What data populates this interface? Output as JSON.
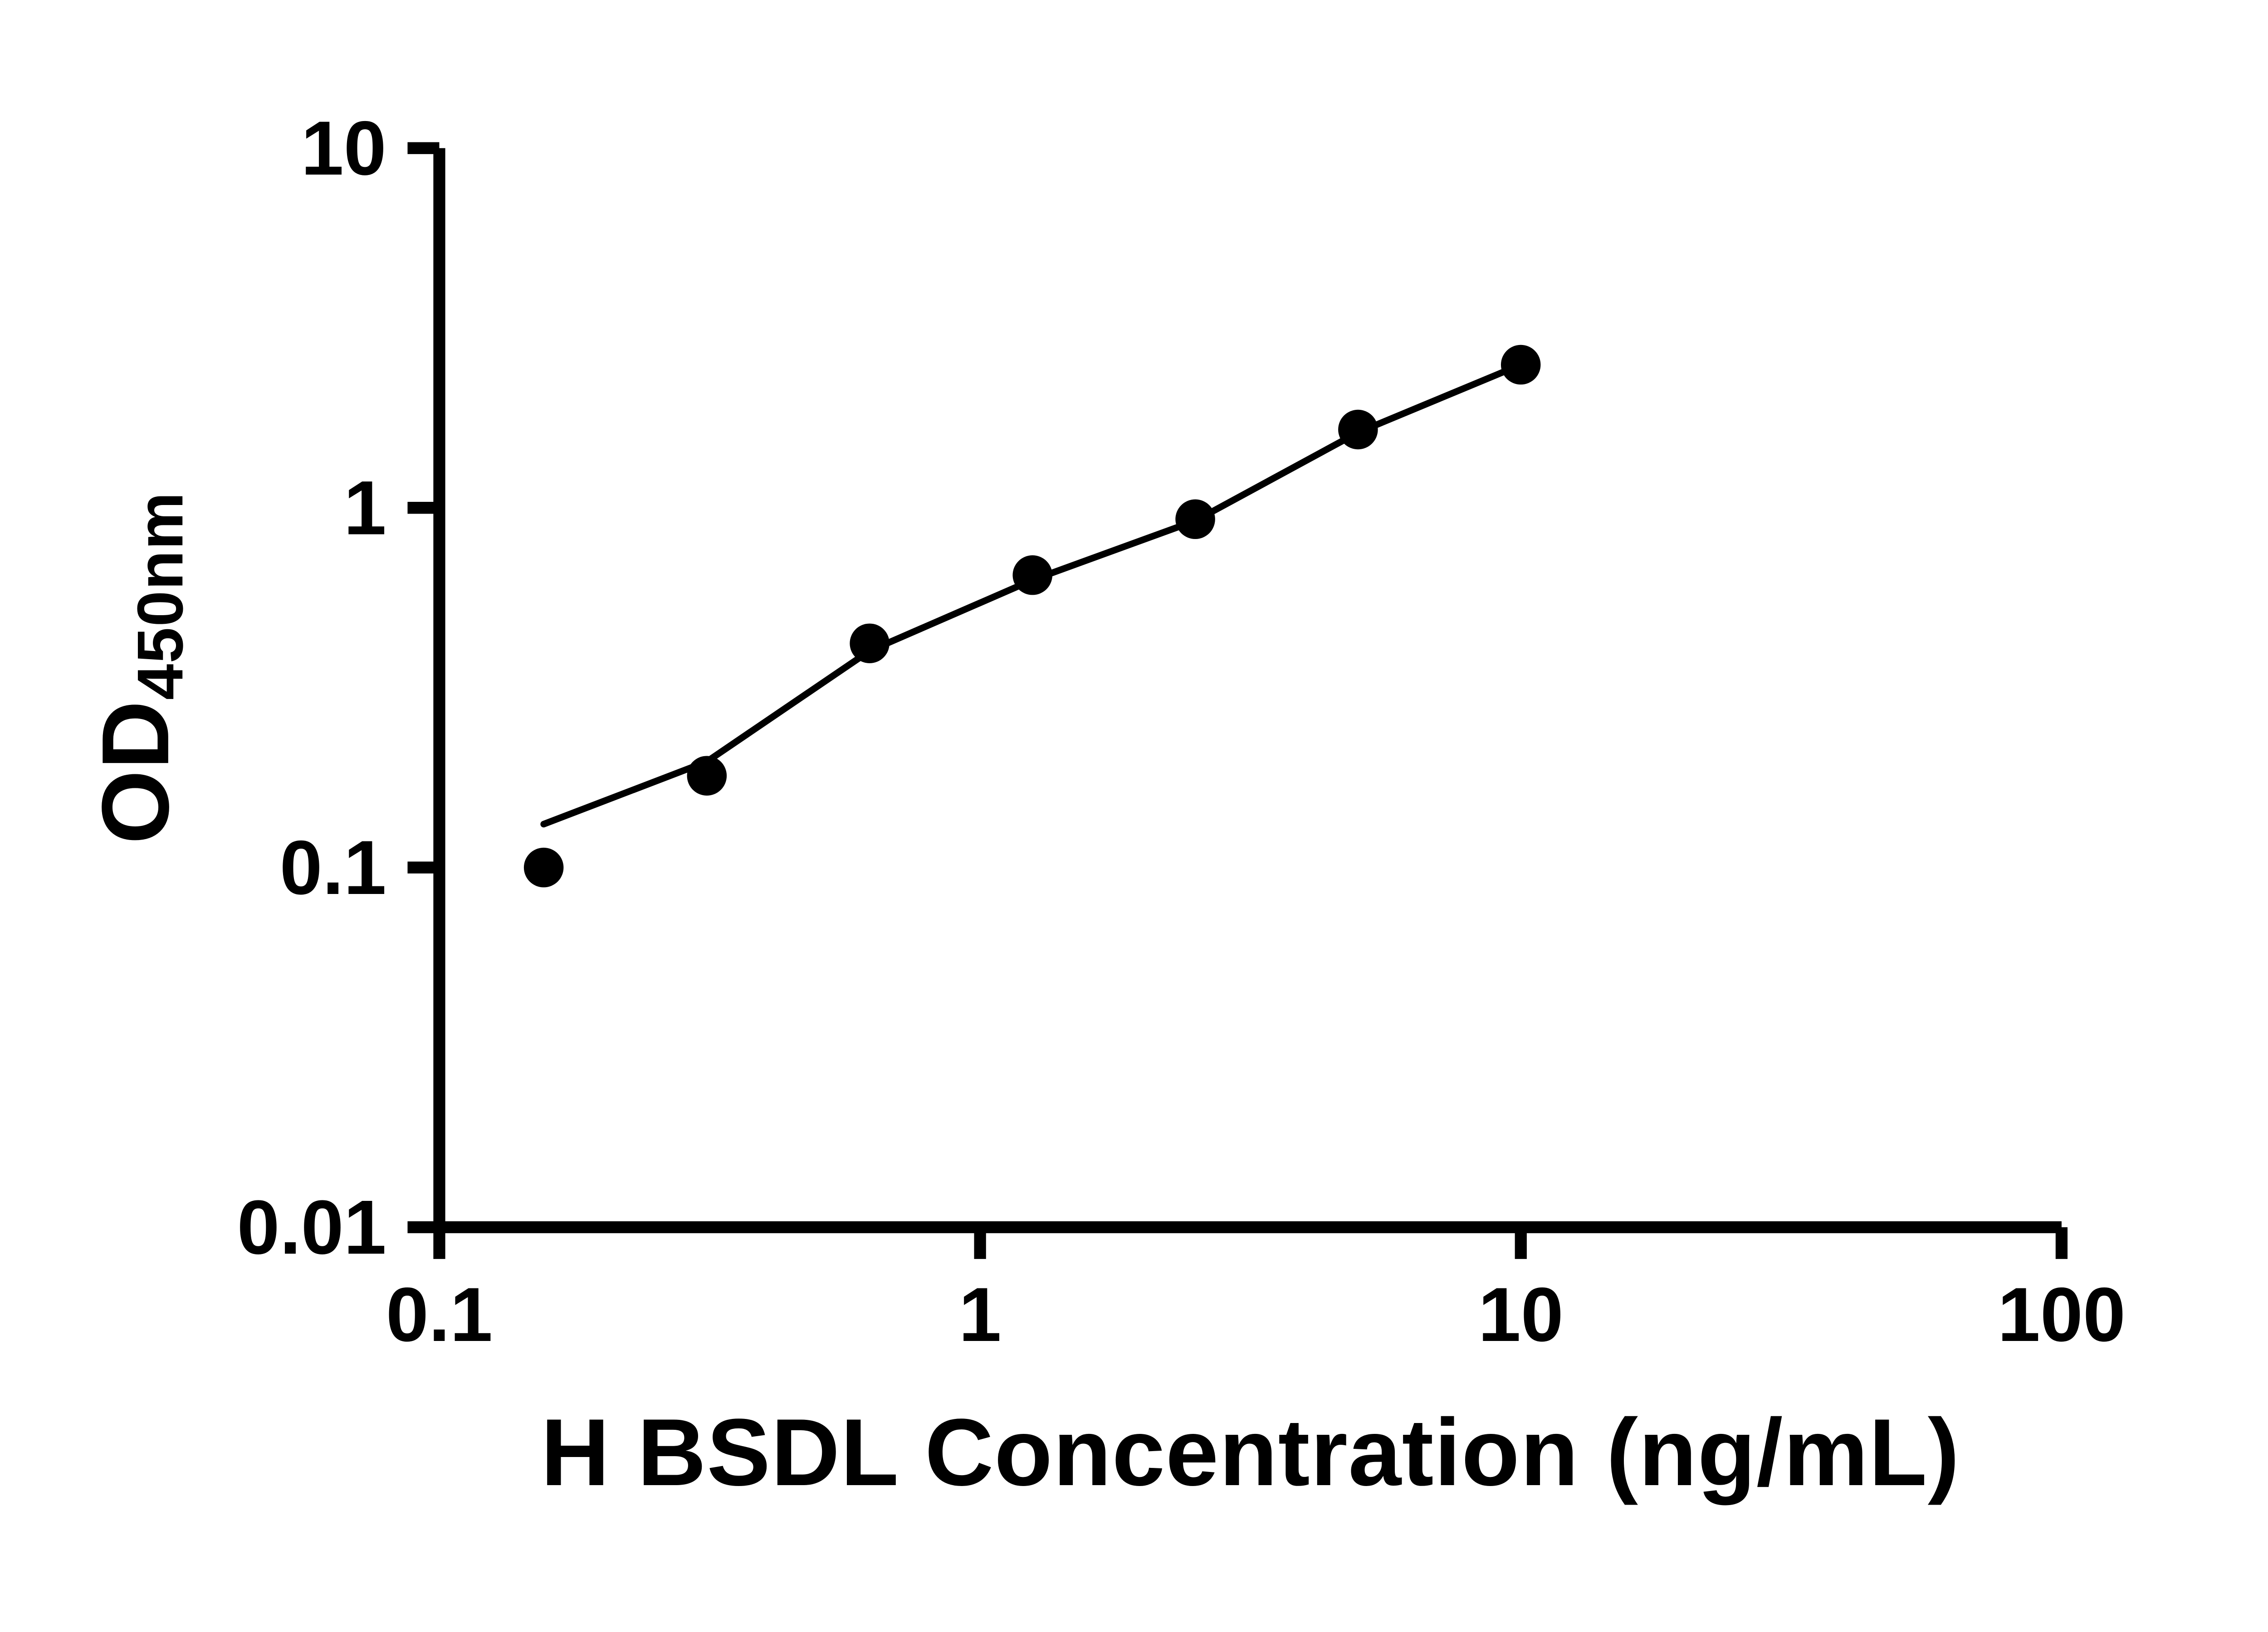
{
  "page": {
    "background": "#ffffff"
  },
  "chart_data": {
    "type": "scatter",
    "title": "",
    "xlabel": "H BSDL Concentration (ng/mL)",
    "ylabel_main": "OD",
    "ylabel_sub": "450nm",
    "x_scale": "log",
    "y_scale": "log",
    "xlim": [
      0.1,
      100
    ],
    "ylim": [
      0.01,
      10
    ],
    "grid": false,
    "legend": "none",
    "axis_color": "#000000",
    "marker_color": "#000000",
    "line_color": "#000000",
    "x_ticks": [
      {
        "value": 0.1,
        "label": "0.1"
      },
      {
        "value": 1,
        "label": "1"
      },
      {
        "value": 10,
        "label": "10"
      },
      {
        "value": 100,
        "label": "100"
      }
    ],
    "y_ticks": [
      {
        "value": 0.01,
        "label": "0.01"
      },
      {
        "value": 0.1,
        "label": "0.1"
      },
      {
        "value": 1,
        "label": "1"
      },
      {
        "value": 10,
        "label": "10"
      }
    ],
    "points": [
      {
        "x": 0.156,
        "y": 0.1
      },
      {
        "x": 0.3125,
        "y": 0.18
      },
      {
        "x": 0.625,
        "y": 0.42
      },
      {
        "x": 1.25,
        "y": 0.65
      },
      {
        "x": 2.5,
        "y": 0.93
      },
      {
        "x": 5,
        "y": 1.65
      },
      {
        "x": 10,
        "y": 2.5
      }
    ],
    "fit_line": [
      {
        "x": 0.156,
        "y": 0.132
      },
      {
        "x": 0.3125,
        "y": 0.197
      },
      {
        "x": 0.625,
        "y": 0.4
      },
      {
        "x": 1.25,
        "y": 0.63
      },
      {
        "x": 2.5,
        "y": 0.92
      },
      {
        "x": 5,
        "y": 1.62
      },
      {
        "x": 10,
        "y": 2.5
      }
    ]
  }
}
